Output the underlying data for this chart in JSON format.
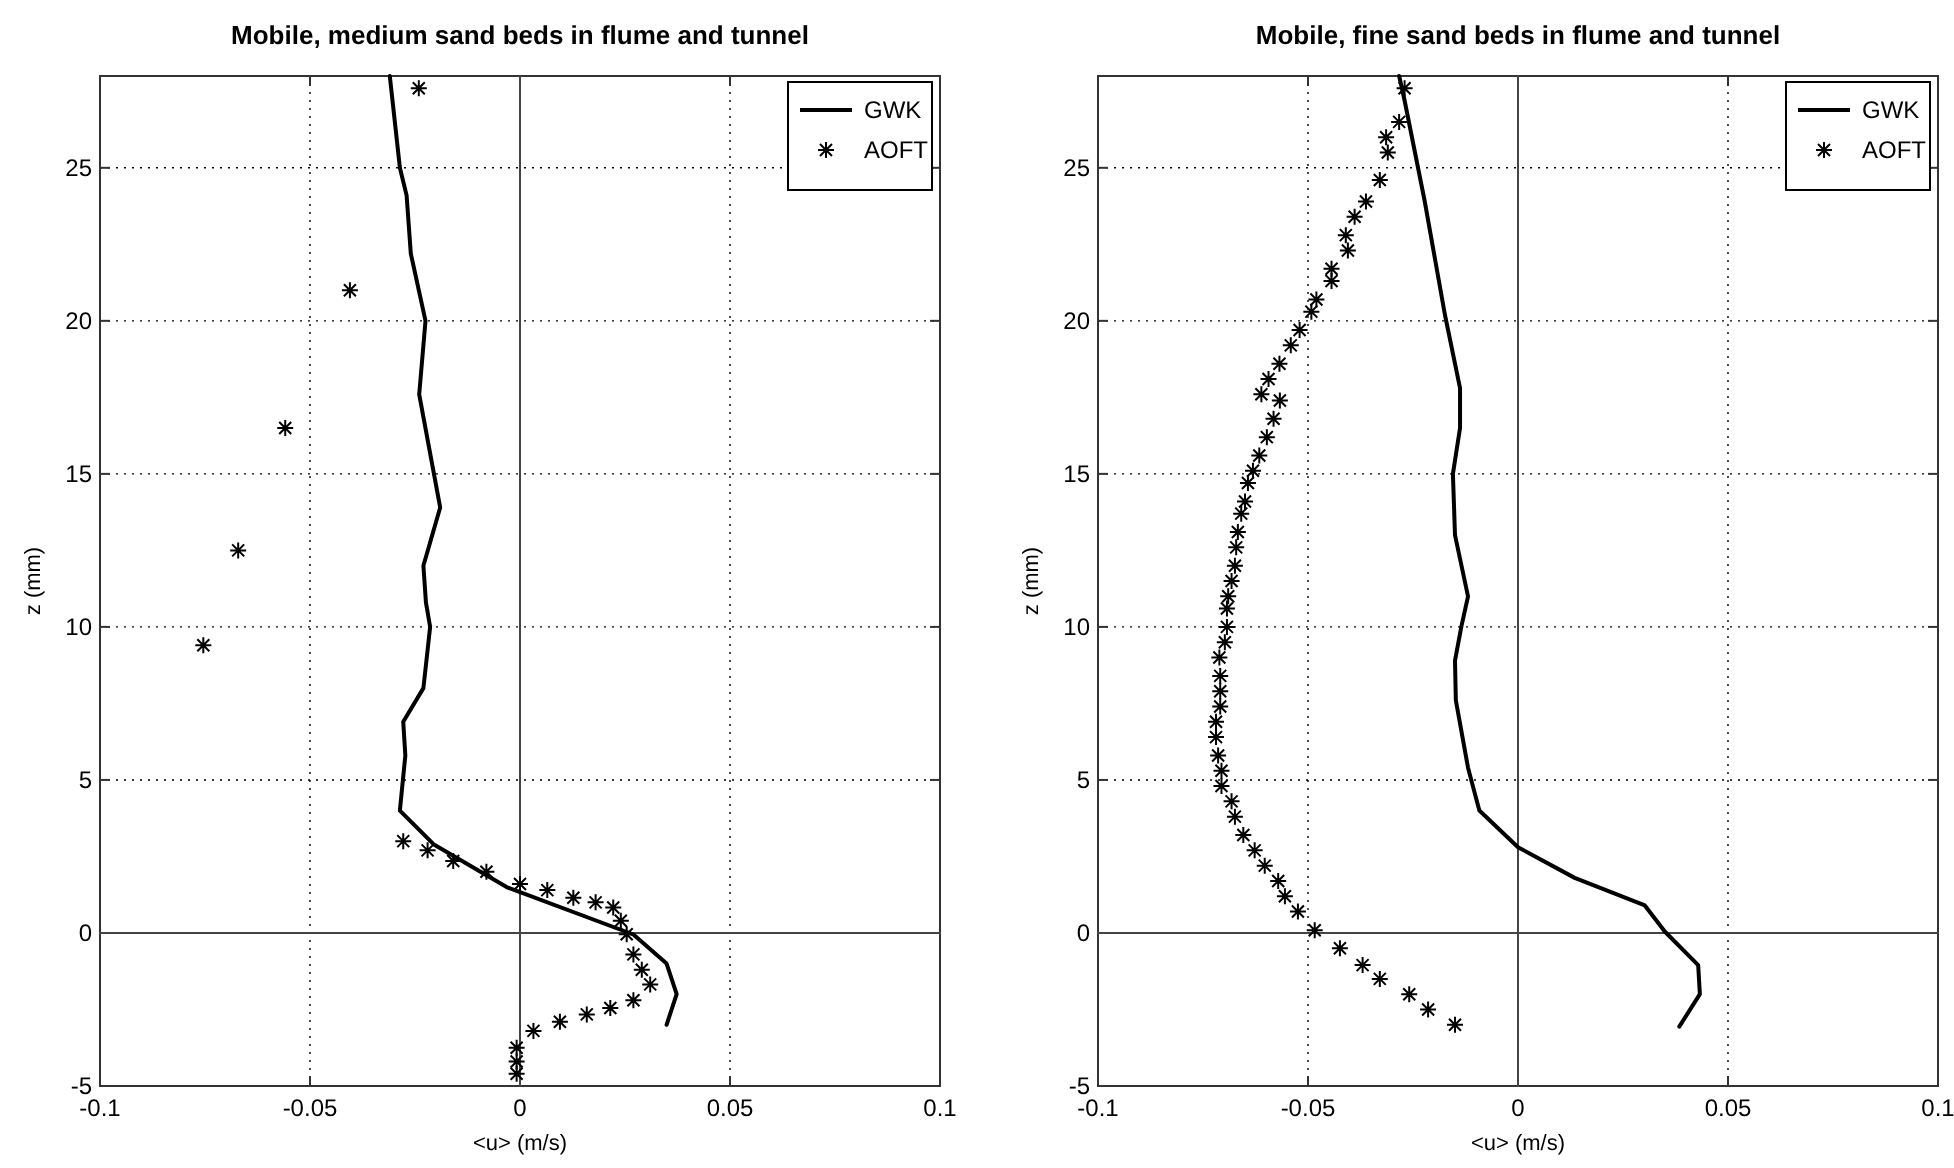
{
  "chart_data": [
    {
      "type": "line",
      "title": "Mobile, medium sand beds in flume and tunnel",
      "xlabel": "<u> (m/s)",
      "ylabel": "z (mm)",
      "xlim": [
        -0.1,
        0.1
      ],
      "xticks": [
        -0.1,
        -0.05,
        0,
        0.05,
        0.1
      ],
      "ylim": [
        -5,
        28
      ],
      "yticks": [
        -5,
        0,
        5,
        10,
        15,
        20,
        25
      ],
      "grid": true,
      "legend": "top right",
      "series": [
        {
          "type": "line",
          "color": "#444444",
          "x": [
            0,
            0
          ],
          "values": [
            -5,
            28
          ]
        },
        {
          "type": "line",
          "color": "#444444",
          "x": [
            -0.1,
            0.1
          ],
          "values": [
            0,
            0
          ]
        },
        {
          "name": "GWK",
          "type": "line",
          "color": "#000000",
          "line_style": "solid",
          "marker": "none",
          "x": [
            -0.031,
            -0.0286,
            -0.027,
            -0.026,
            -0.0225,
            -0.024,
            -0.019,
            -0.023,
            -0.0224,
            -0.0214,
            -0.023,
            -0.0278,
            -0.0273,
            -0.0286,
            -0.0206,
            -0.0032,
            0.027,
            0.0349,
            0.0373,
            0.0349
          ],
          "values": [
            28,
            25,
            24.1,
            22.2,
            20,
            17.6,
            13.9,
            12,
            10.8,
            10,
            8,
            6.9,
            5.8,
            4,
            2.9,
            1.5,
            -0.05,
            -1,
            -2,
            -3
          ]
        },
        {
          "name": "AOFT",
          "type": "scatter",
          "color": "#000000",
          "marker": "cross",
          "x": [
            -0.0241,
            -0.0405,
            -0.0559,
            -0.0671,
            -0.0754,
            -0.0278,
            -0.022,
            -0.0159,
            -0.008,
            0,
            0.0065,
            0.0127,
            0.018,
            0.0222,
            0.024,
            0.0254,
            0.027,
            0.029,
            0.031,
            0.027,
            0.0215,
            0.0159,
            0.0095,
            0.0032,
            -0.0008,
            -0.0008,
            -0.0008
          ],
          "values": [
            27.6,
            21,
            16.5,
            12.5,
            9.4,
            3,
            2.7,
            2.35,
            2,
            1.6,
            1.4,
            1.15,
            1,
            0.83,
            0.4,
            -0.04,
            -0.7,
            -1.2,
            -1.68,
            -2.2,
            -2.45,
            -2.66,
            -2.9,
            -3.2,
            -3.75,
            -4.2,
            -4.6
          ]
        }
      ]
    },
    {
      "type": "line",
      "title": "Mobile, fine sand beds in flume and tunnel",
      "xlabel": "<u> (m/s)",
      "ylabel": "z (mm)",
      "xlim": [
        -0.1,
        0.1
      ],
      "xticks": [
        -0.1,
        -0.05,
        0,
        0.05,
        0.1
      ],
      "ylim": [
        -5,
        28
      ],
      "yticks": [
        -5,
        0,
        5,
        10,
        15,
        20,
        25
      ],
      "grid": true,
      "legend": "top right",
      "series": [
        {
          "type": "line",
          "color": "#444444",
          "x": [
            0,
            0
          ],
          "values": [
            -5,
            28
          ]
        },
        {
          "type": "line",
          "color": "#444444",
          "x": [
            -0.1,
            0.1
          ],
          "values": [
            0,
            0
          ]
        },
        {
          "name": "GWK",
          "type": "line",
          "color": "#000000",
          "line_style": "solid",
          "marker": "none",
          "x": [
            -0.0283,
            -0.027,
            -0.0222,
            -0.0174,
            -0.0138,
            -0.0138,
            -0.0155,
            -0.015,
            -0.0119,
            -0.0135,
            -0.015,
            -0.0148,
            -0.0119,
            -0.0092,
            0,
            0.0135,
            0.0302,
            0.035,
            0.0429,
            0.0433,
            0.0384
          ],
          "values": [
            28,
            27.2,
            23.9,
            20.2,
            17.8,
            16.5,
            15,
            13,
            11,
            10,
            8.9,
            7.6,
            5.4,
            4,
            2.8,
            1.8,
            0.9,
            0.04,
            -1.05,
            -2,
            -3.06
          ]
        },
        {
          "name": "AOFT",
          "type": "scatter",
          "color": "#000000",
          "marker": "cross",
          "x": [
            -0.027,
            -0.0283,
            -0.0314,
            -0.031,
            -0.0329,
            -0.0362,
            -0.0389,
            -0.041,
            -0.0405,
            -0.0444,
            -0.0444,
            -0.048,
            -0.0492,
            -0.052,
            -0.0541,
            -0.0568,
            -0.0594,
            -0.0611,
            -0.0567,
            -0.0582,
            -0.0598,
            -0.0616,
            -0.0631,
            -0.0643,
            -0.065,
            -0.0659,
            -0.0667,
            -0.0671,
            -0.0674,
            -0.0682,
            -0.069,
            -0.0693,
            -0.0693,
            -0.0698,
            -0.0711,
            -0.0709,
            -0.0709,
            -0.0709,
            -0.0719,
            -0.0719,
            -0.0714,
            -0.0706,
            -0.0706,
            -0.0682,
            -0.0674,
            -0.0654,
            -0.0627,
            -0.0603,
            -0.0571,
            -0.0555,
            -0.0524,
            -0.0484,
            -0.0424,
            -0.037,
            -0.0329,
            -0.0259,
            -0.0214,
            -0.015
          ],
          "values": [
            27.6,
            26.5,
            26,
            25.5,
            24.6,
            23.9,
            23.4,
            22.8,
            22.3,
            21.7,
            21.3,
            20.7,
            20.3,
            19.7,
            19.2,
            18.6,
            18.1,
            17.6,
            17.4,
            16.8,
            16.2,
            15.6,
            15.1,
            14.7,
            14.1,
            13.7,
            13.1,
            12.6,
            12,
            11.5,
            11,
            10.6,
            10,
            9.5,
            9,
            8.4,
            7.9,
            7.4,
            6.9,
            6.4,
            5.8,
            5.3,
            4.8,
            4.3,
            3.8,
            3.2,
            2.7,
            2.2,
            1.7,
            1.2,
            0.7,
            0.09,
            -0.5,
            -1.05,
            -1.5,
            -2,
            -2.5,
            -3
          ]
        }
      ]
    }
  ]
}
